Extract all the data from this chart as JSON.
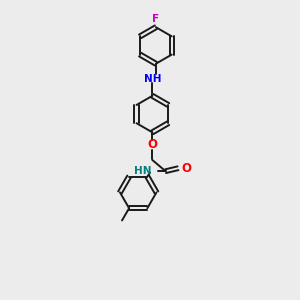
{
  "background_color": "#ececec",
  "bond_color": "#1a1a1a",
  "N_color": "#0000ff",
  "O_color": "#ff0000",
  "F_color": "#cc00cc",
  "NH_color": "#0000ff",
  "NH_amide_color": "#008080",
  "figsize": [
    3.0,
    3.0
  ],
  "dpi": 100,
  "xlim": [
    0,
    10
  ],
  "ylim": [
    0,
    10
  ],
  "ring_r": 0.62,
  "lw": 1.4,
  "fs": 7.5
}
